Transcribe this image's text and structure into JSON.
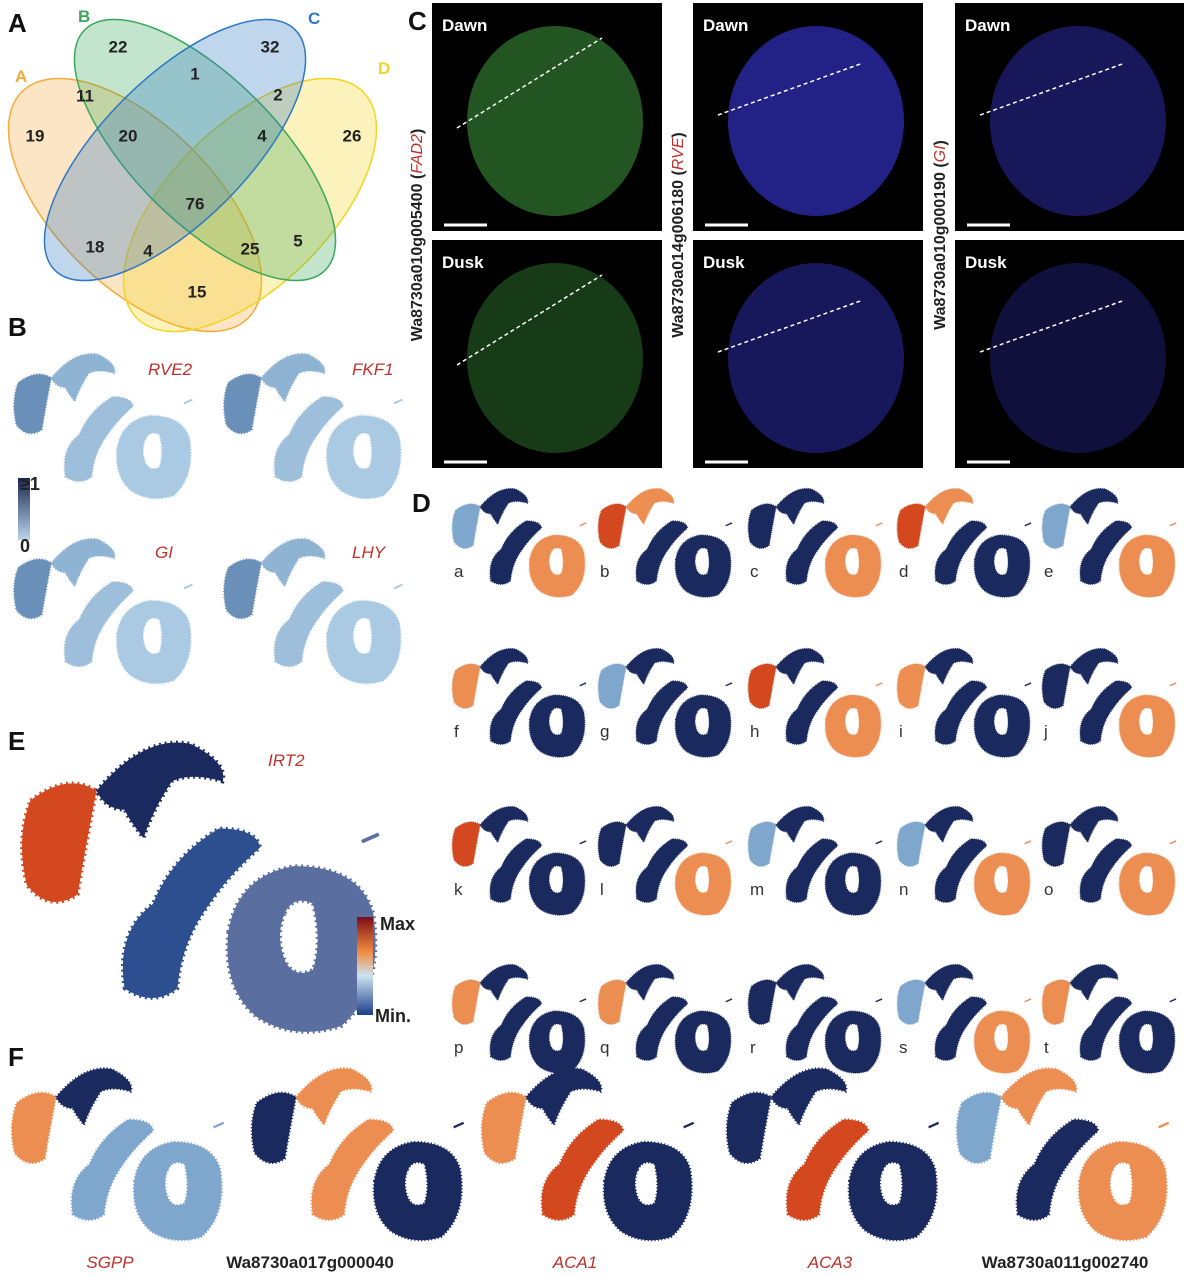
{
  "panel_a": {
    "label": "A",
    "sets": [
      {
        "name": "A",
        "color": "#f5a93a"
      },
      {
        "name": "B",
        "color": "#3aa85a"
      },
      {
        "name": "C",
        "color": "#2f78c4"
      },
      {
        "name": "D",
        "color": "#f2d422"
      }
    ],
    "counts": [
      19,
      22,
      32,
      26,
      11,
      1,
      2,
      20,
      4,
      18,
      76,
      5,
      4,
      25,
      15
    ]
  },
  "panel_b": {
    "label": "B",
    "genes": [
      "RVE2",
      "FKF1",
      "GI",
      "LHY"
    ],
    "scale": [
      "≥1",
      "0"
    ]
  },
  "panel_c": {
    "label": "C",
    "times": [
      "Dawn",
      "Dusk"
    ],
    "genes": [
      [
        "Wa8730a010g005400 (",
        "FAD2",
        ")"
      ],
      [
        "Wa8730a014g006180 (",
        "RVE",
        ")"
      ],
      [
        "Wa8730a010g000190 (",
        "GI",
        ")"
      ]
    ]
  },
  "panel_d": {
    "label": "D",
    "panels": [
      "a",
      "b",
      "c",
      "d",
      "e",
      "f",
      "g",
      "h",
      "i",
      "j",
      "k",
      "l",
      "m",
      "n",
      "o",
      "p",
      "q",
      "r",
      "s",
      "t"
    ]
  },
  "panel_e": {
    "label": "E",
    "gene": "IRT2",
    "scale": [
      "Max",
      "Min."
    ]
  },
  "panel_f": {
    "label": "F",
    "genes": [
      "SGPP",
      "Wa8730a017g000040",
      "ACA1",
      "ACA3",
      "Wa8730a011g002740"
    ]
  }
}
